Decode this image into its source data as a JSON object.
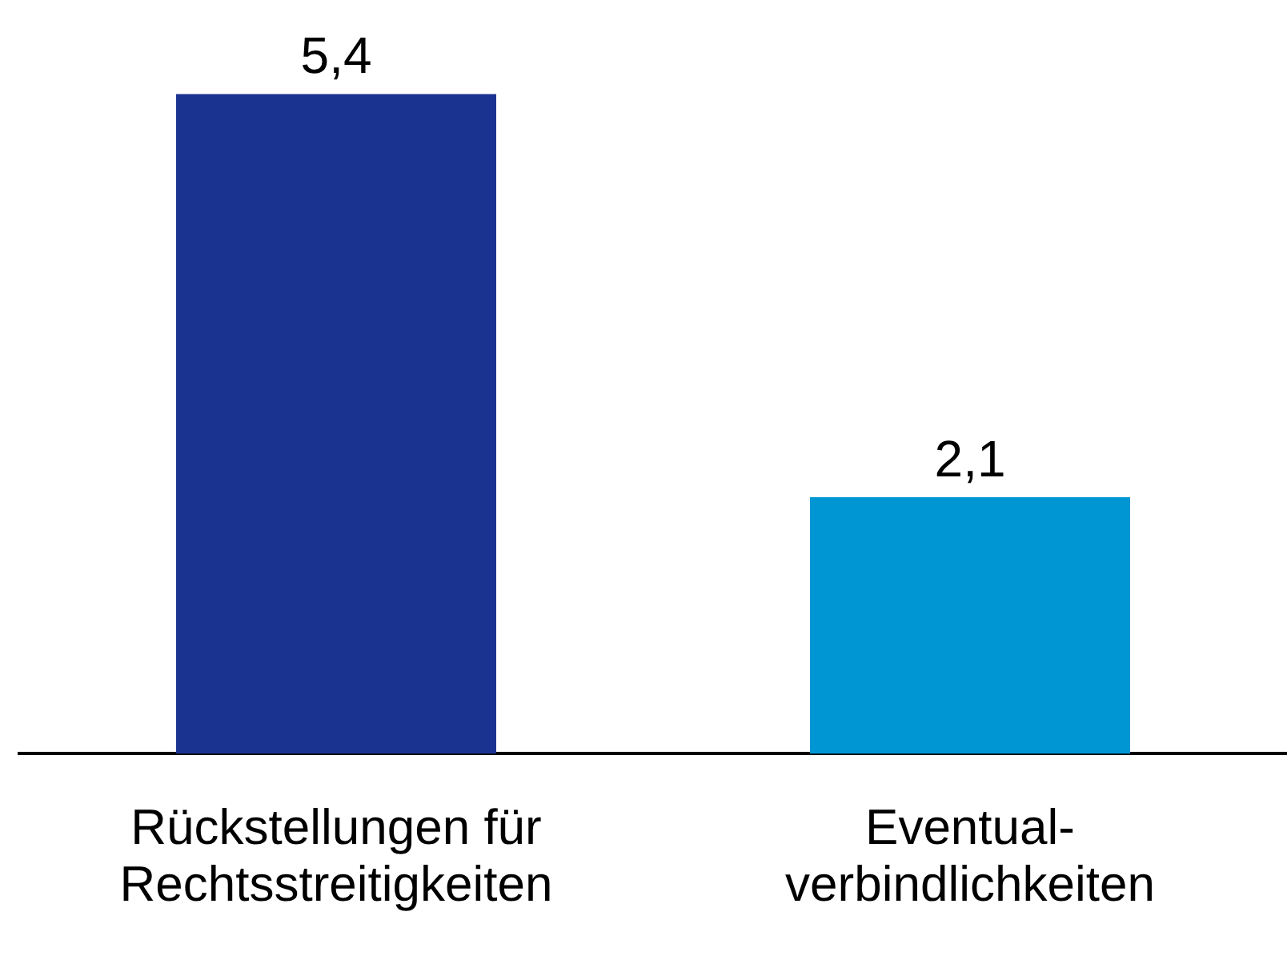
{
  "chart_data": {
    "type": "bar",
    "categories": [
      "Rückstellungen für\nRechtsstreitigkeiten",
      "Eventual-\nverbindlichkeiten"
    ],
    "values": [
      5.4,
      2.1
    ],
    "colors": [
      "#1b3390",
      "#0095d3"
    ],
    "value_labels": [
      "5,4",
      "2,1"
    ],
    "legend": false,
    "grid": false
  }
}
